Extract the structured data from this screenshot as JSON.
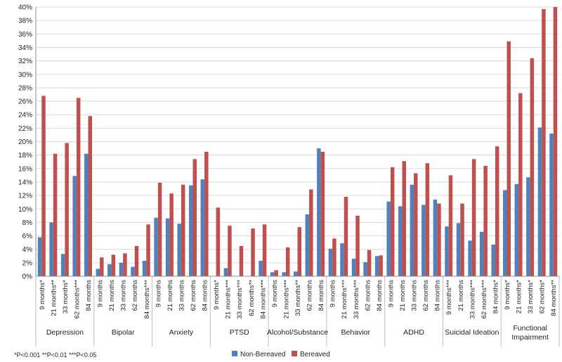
{
  "chart_data": {
    "type": "bar",
    "ylim": [
      0,
      40
    ],
    "y_tick_step": 2,
    "y_tick_labels": [
      "0%",
      "2%",
      "4%",
      "6%",
      "8%",
      "10%",
      "12%",
      "14%",
      "16%",
      "18%",
      "20%",
      "22%",
      "24%",
      "26%",
      "28%",
      "30%",
      "32%",
      "34%",
      "36%",
      "38%",
      "40%"
    ],
    "grid": true,
    "legend_position": "bottom-center",
    "footnote": "*P<0.001    **P<0.01    ***P<0.05",
    "series": [
      {
        "name": "Non-Bereaved",
        "color": "#4f81bd"
      },
      {
        "name": "Bereaved",
        "color": "#c0504d"
      }
    ],
    "groups": [
      {
        "label": "Depression",
        "timepoints": [
          {
            "label": "9 months*",
            "non_bereaved": 5.8,
            "bereaved": 26.8
          },
          {
            "label": "21 months**",
            "non_bereaved": 8.0,
            "bereaved": 18.2
          },
          {
            "label": "33 months*",
            "non_bereaved": 3.3,
            "bereaved": 19.8
          },
          {
            "label": "62 months***",
            "non_bereaved": 14.9,
            "bereaved": 26.5
          },
          {
            "label": "84 months",
            "non_bereaved": 18.2,
            "bereaved": 23.8
          }
        ]
      },
      {
        "label": "Bipolar",
        "timepoints": [
          {
            "label": "9 months",
            "non_bereaved": 1.1,
            "bereaved": 2.8
          },
          {
            "label": "21 months",
            "non_bereaved": 1.8,
            "bereaved": 3.2
          },
          {
            "label": "33 months",
            "non_bereaved": 2.0,
            "bereaved": 3.4
          },
          {
            "label": "62 months",
            "non_bereaved": 1.4,
            "bereaved": 4.5
          },
          {
            "label": "84 months***",
            "non_bereaved": 2.3,
            "bereaved": 7.7
          }
        ]
      },
      {
        "label": "Anxiety",
        "timepoints": [
          {
            "label": "9 months",
            "non_bereaved": 8.7,
            "bereaved": 13.9
          },
          {
            "label": "21 months",
            "non_bereaved": 8.6,
            "bereaved": 12.3
          },
          {
            "label": "33 months",
            "non_bereaved": 7.8,
            "bereaved": 13.6
          },
          {
            "label": "62 months",
            "non_bereaved": 13.5,
            "bereaved": 17.4
          },
          {
            "label": "84 months",
            "non_bereaved": 14.4,
            "bereaved": 18.5
          }
        ]
      },
      {
        "label": "PTSD",
        "timepoints": [
          {
            "label": "9 months*",
            "non_bereaved": 0.0,
            "bereaved": 10.2
          },
          {
            "label": "21 months***",
            "non_bereaved": 1.2,
            "bereaved": 7.5
          },
          {
            "label": "33 months***",
            "non_bereaved": 0.0,
            "bereaved": 4.5
          },
          {
            "label": "62 months**",
            "non_bereaved": 0.0,
            "bereaved": 7.1
          },
          {
            "label": "84 months***",
            "non_bereaved": 2.3,
            "bereaved": 7.7
          }
        ]
      },
      {
        "label": "Alcohol/Substance",
        "timepoints": [
          {
            "label": "9 months",
            "non_bereaved": 0.6,
            "bereaved": 0.9
          },
          {
            "label": "21 months***",
            "non_bereaved": 0.6,
            "bereaved": 4.3
          },
          {
            "label": "33 months**",
            "non_bereaved": 0.7,
            "bereaved": 7.3
          },
          {
            "label": "62 months",
            "non_bereaved": 9.2,
            "bereaved": 12.9
          },
          {
            "label": "84 months",
            "non_bereaved": 19.0,
            "bereaved": 18.5
          }
        ]
      },
      {
        "label": "Behavior",
        "timepoints": [
          {
            "label": "9 months",
            "non_bereaved": 4.1,
            "bereaved": 5.6
          },
          {
            "label": "21 months***",
            "non_bereaved": 4.9,
            "bereaved": 11.8
          },
          {
            "label": "33 months***",
            "non_bereaved": 2.6,
            "bereaved": 9.0
          },
          {
            "label": "62 months",
            "non_bereaved": 2.1,
            "bereaved": 3.9
          },
          {
            "label": "84 months",
            "non_bereaved": 3.0,
            "bereaved": 3.1
          }
        ]
      },
      {
        "label": "ADHD",
        "timepoints": [
          {
            "label": "9 months",
            "non_bereaved": 11.1,
            "bereaved": 16.2
          },
          {
            "label": "21 months",
            "non_bereaved": 10.4,
            "bereaved": 17.1
          },
          {
            "label": "33 months",
            "non_bereaved": 13.6,
            "bereaved": 15.3
          },
          {
            "label": "62 months",
            "non_bereaved": 10.6,
            "bereaved": 16.8
          },
          {
            "label": "84 months",
            "non_bereaved": 11.4,
            "bereaved": 10.8
          }
        ]
      },
      {
        "label": "Suicidal Ideation",
        "timepoints": [
          {
            "label": "9 months***",
            "non_bereaved": 7.4,
            "bereaved": 15.0
          },
          {
            "label": "21 months",
            "non_bereaved": 7.9,
            "bereaved": 10.8
          },
          {
            "label": "33 months***",
            "non_bereaved": 5.3,
            "bereaved": 17.4
          },
          {
            "label": "62 months***",
            "non_bereaved": 6.6,
            "bereaved": 16.4
          },
          {
            "label": "84 months*",
            "non_bereaved": 4.7,
            "bereaved": 19.3
          }
        ]
      },
      {
        "label": "Functional Impairment",
        "timepoints": [
          {
            "label": "9 months*",
            "non_bereaved": 12.8,
            "bereaved": 34.9
          },
          {
            "label": "21 months*",
            "non_bereaved": 13.7,
            "bereaved": 27.2
          },
          {
            "label": "33 months*",
            "non_bereaved": 14.7,
            "bereaved": 32.4
          },
          {
            "label": "62 months*",
            "non_bereaved": 22.1,
            "bereaved": 39.7
          },
          {
            "label": "84 months**",
            "non_bereaved": 21.2,
            "bereaved": 40.0
          }
        ]
      }
    ]
  }
}
